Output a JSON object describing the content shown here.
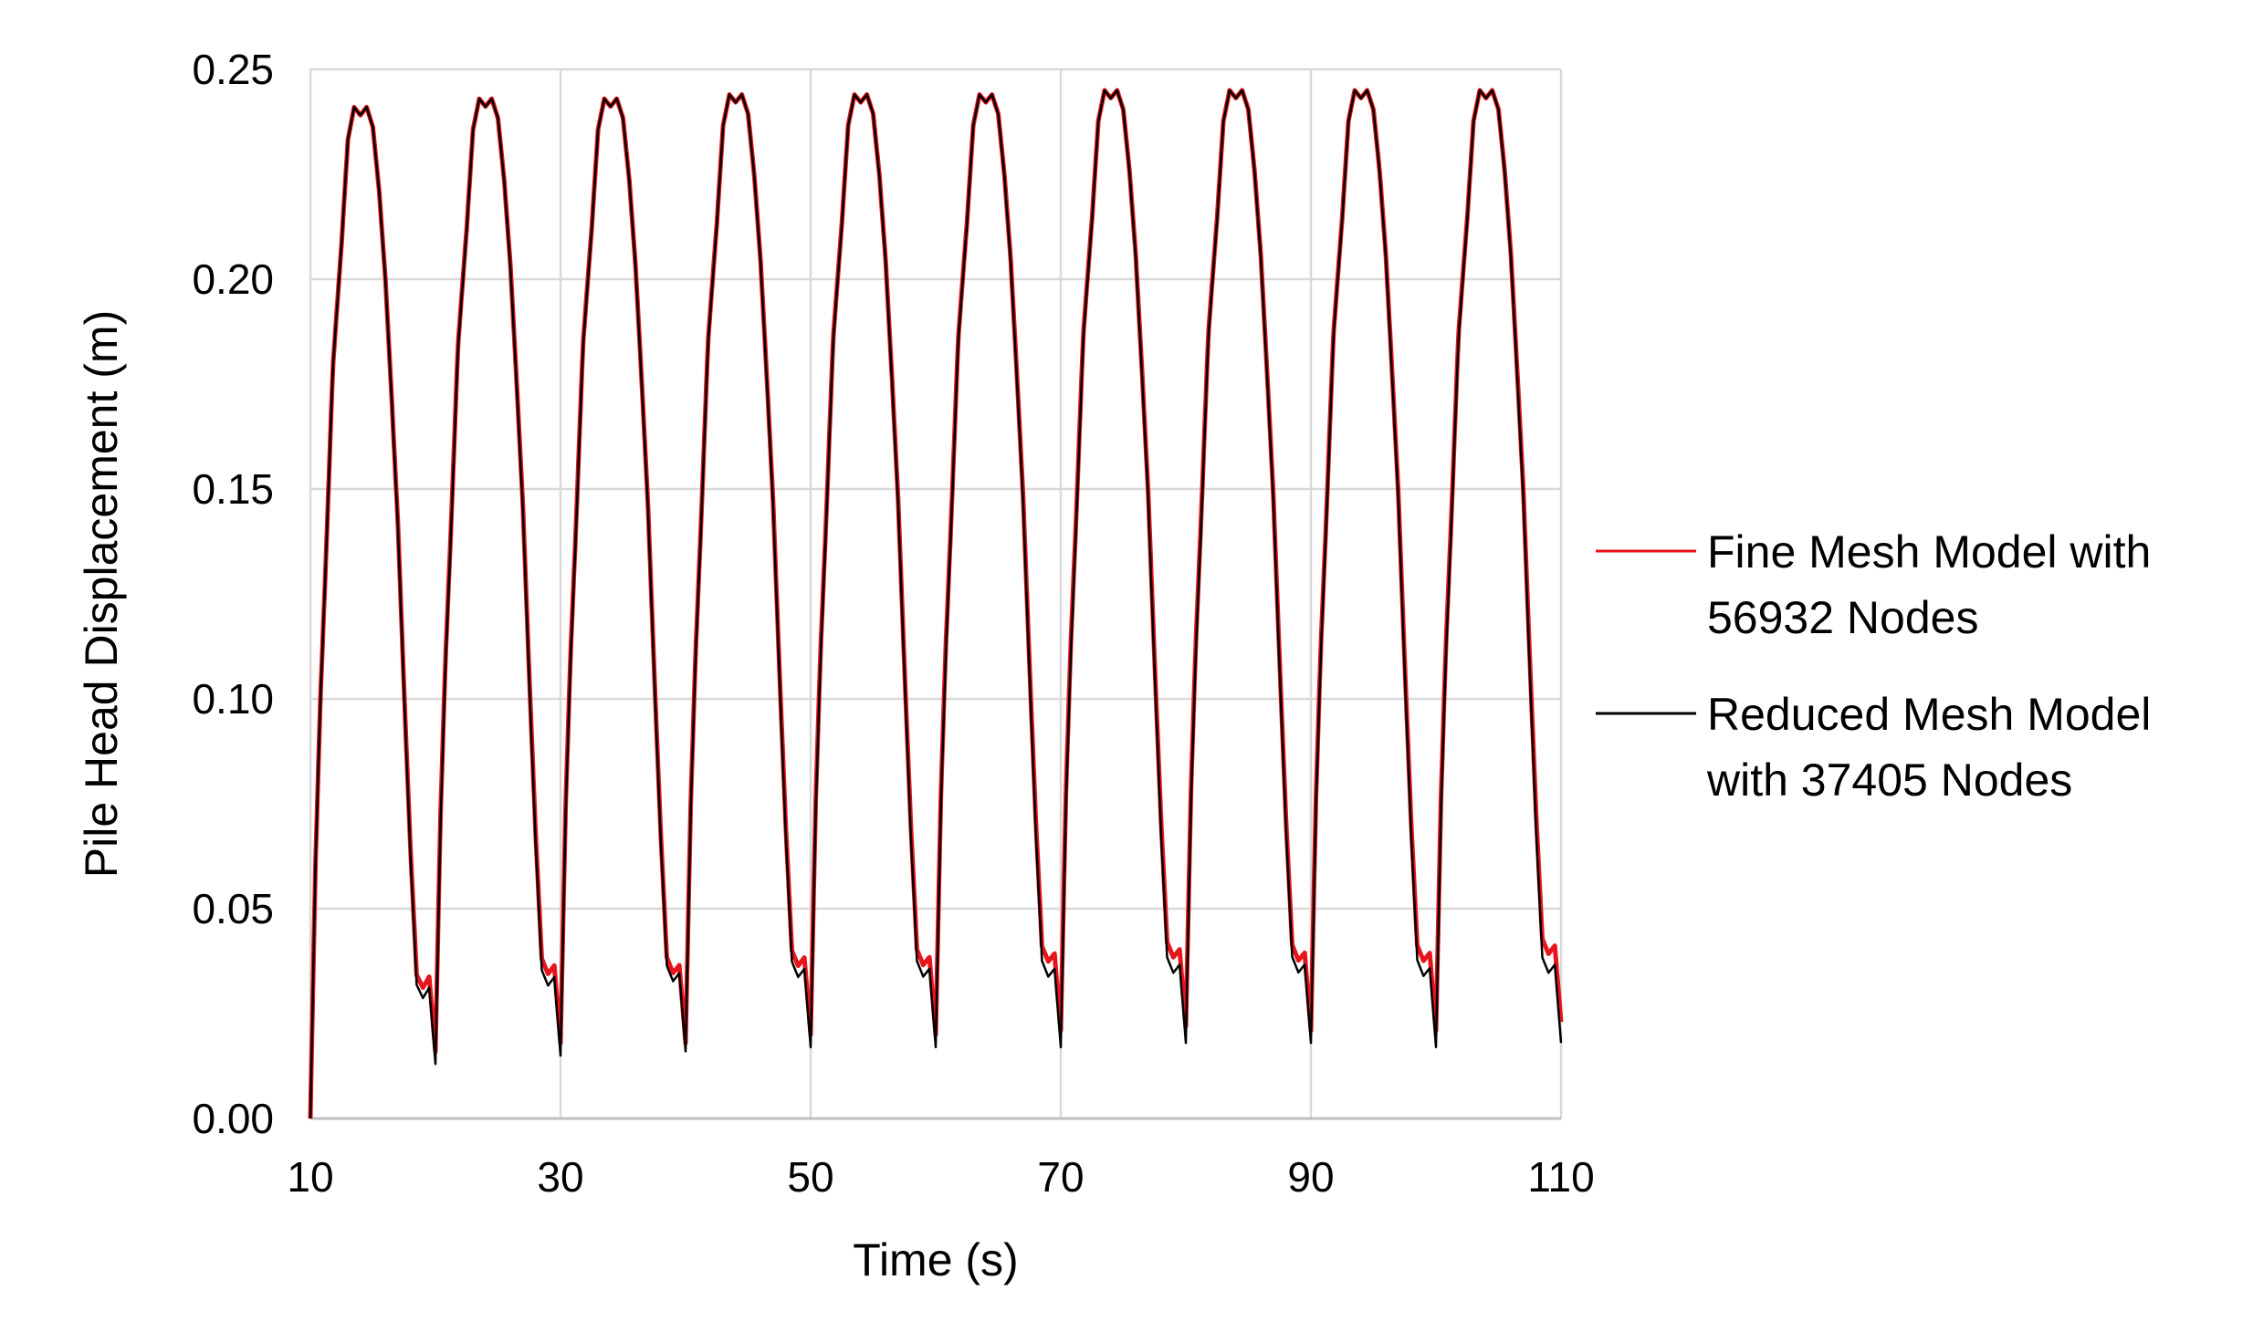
{
  "chart_data": {
    "type": "line",
    "xlabel": "Time (s)",
    "ylabel": "Pile Head Displacement (m)",
    "xlim": [
      10,
      110
    ],
    "ylim": [
      0,
      0.25
    ],
    "x_ticks": [
      "10",
      "30",
      "50",
      "70",
      "90",
      "110"
    ],
    "y_ticks": [
      "0.00",
      "0.05",
      "0.10",
      "0.15",
      "0.20",
      "0.25"
    ],
    "grid": true,
    "legend_position": "right",
    "period_s": 10,
    "cycle_shape": {
      "phase": [
        0,
        0.04,
        0.08,
        0.12,
        0.18,
        0.25,
        0.3,
        0.35,
        0.4,
        0.45,
        0.5,
        0.55,
        0.6,
        0.65,
        0.7,
        0.75,
        0.8,
        0.85,
        0.9,
        0.95,
        1.0
      ],
      "value": [
        0.0,
        0.06,
        0.1,
        0.13,
        0.18,
        0.21,
        0.235,
        0.243,
        0.241,
        0.243,
        0.238,
        0.222,
        0.2,
        0.17,
        0.138,
        0.095,
        0.055,
        0.022,
        0.018,
        0.02,
        0.0
      ]
    },
    "series": [
      {
        "name": "Fine Mesh Model with 56932 Nodes",
        "color": "#e8141c",
        "first_min": 0.0,
        "cycle_mins": [
          0.0,
          0.016,
          0.018,
          0.018,
          0.02,
          0.02,
          0.021,
          0.022,
          0.021,
          0.021,
          0.023
        ],
        "peaks": [
          0.241,
          0.243,
          0.243,
          0.244,
          0.244,
          0.244,
          0.245,
          0.245,
          0.245,
          0.245
        ]
      },
      {
        "name": "Reduced Mesh Model with 37405 Nodes",
        "color": "#000000",
        "first_min": 0.0,
        "cycle_mins": [
          0.0,
          0.013,
          0.015,
          0.016,
          0.017,
          0.017,
          0.017,
          0.018,
          0.018,
          0.017,
          0.018
        ],
        "peaks": [
          0.241,
          0.243,
          0.243,
          0.244,
          0.244,
          0.244,
          0.245,
          0.245,
          0.245,
          0.245
        ]
      }
    ],
    "legend": [
      {
        "lines": [
          "Fine Mesh Model with",
          "56932 Nodes"
        ],
        "color": "#e8141c"
      },
      {
        "lines": [
          "Reduced Mesh Model",
          "with 37405 Nodes"
        ],
        "color": "#000000"
      }
    ]
  }
}
